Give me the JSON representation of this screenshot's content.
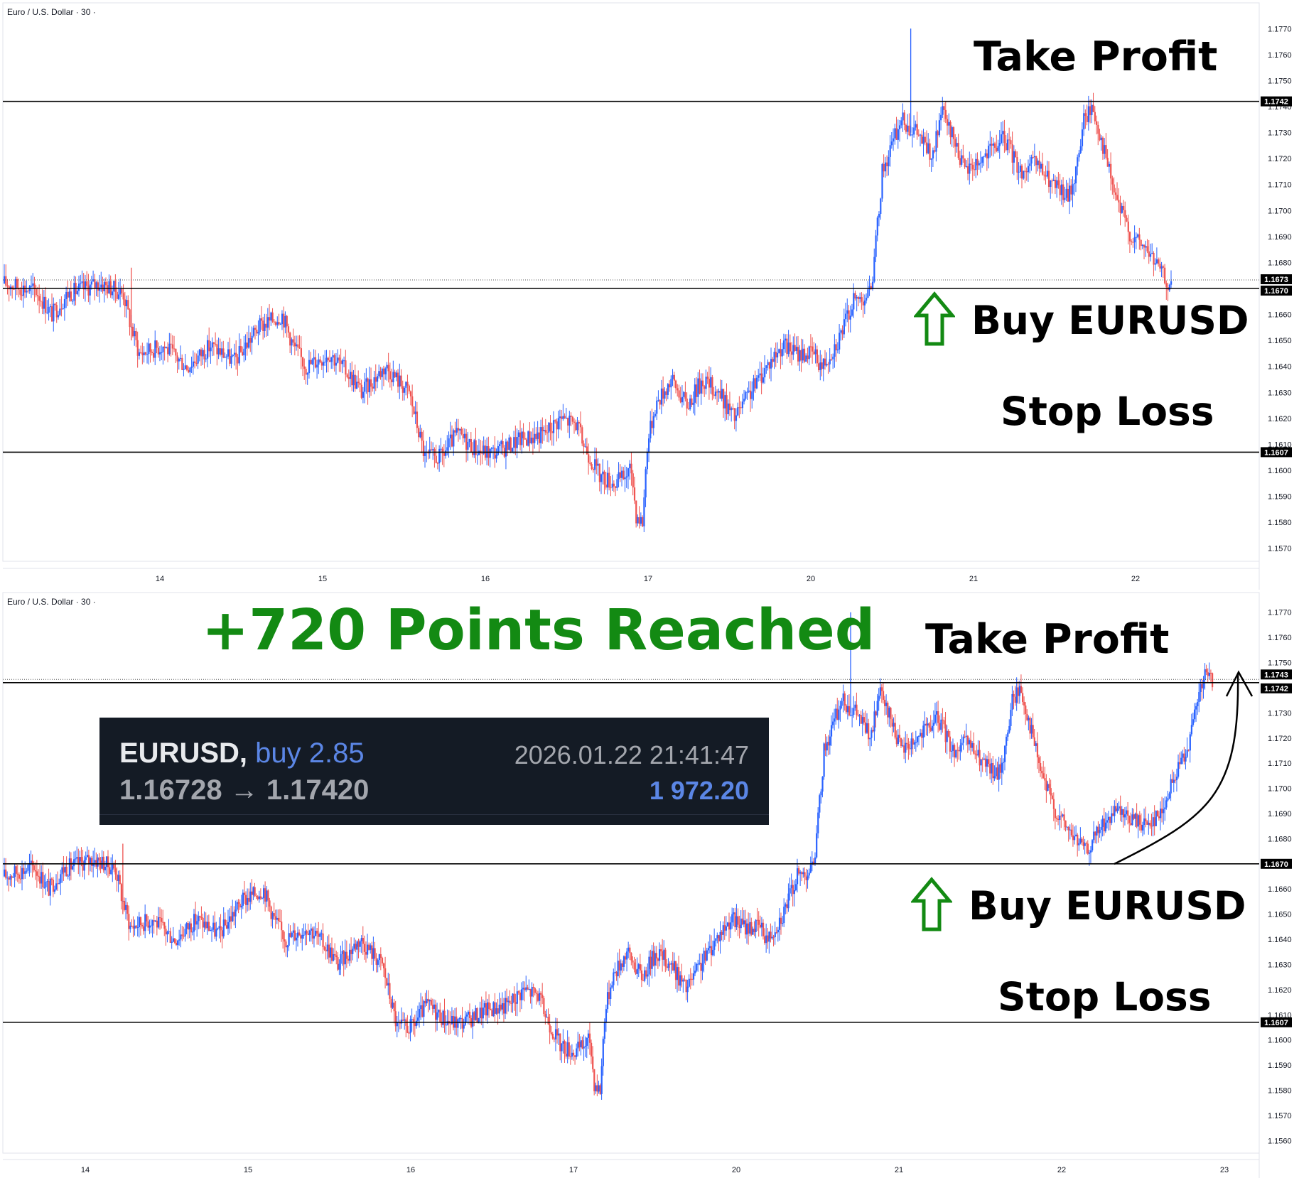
{
  "chart_data": [
    {
      "type": "candlestick",
      "panel": "top",
      "symbol": "Euro / U.S. Dollar · 30 ·",
      "timeframe": "30",
      "ylim": [
        1.1565,
        1.1775
      ],
      "y_ticks": [
        "1.1770",
        "1.1760",
        "1.1750",
        "1.1740",
        "1.1730",
        "1.1720",
        "1.1710",
        "1.1700",
        "1.1690",
        "1.1680",
        "1.1670",
        "1.1660",
        "1.1650",
        "1.1640",
        "1.1630",
        "1.1620",
        "1.1610",
        "1.1600",
        "1.1590",
        "1.1580",
        "1.1570"
      ],
      "x_labels": [
        "14",
        "15",
        "16",
        "17",
        "20",
        "21",
        "22"
      ],
      "price_labels": [
        {
          "value": 1.1742,
          "text": "1.1742",
          "style": "black"
        },
        {
          "value": 1.1673,
          "text": "1.1673",
          "style": "black"
        },
        {
          "value": 1.167,
          "text": "1.1670",
          "style": "black"
        },
        {
          "value": 1.1607,
          "text": "1.1607",
          "style": "black"
        }
      ],
      "horizontal_lines": [
        {
          "value": 1.1742,
          "name": "take-profit"
        },
        {
          "value": 1.167,
          "name": "entry"
        },
        {
          "value": 1.1607,
          "name": "stop-loss"
        }
      ],
      "current_price": 1.1673,
      "annotations": {
        "take_profit": "Take Profit",
        "buy": "Buy EURUSD",
        "stop_loss": "Stop Loss"
      },
      "path_keypoints": [
        [
          0,
          1.1672
        ],
        [
          20,
          1.1669
        ],
        [
          30,
          1.166
        ],
        [
          40,
          1.1668
        ],
        [
          60,
          1.1672
        ],
        [
          75,
          1.1668
        ],
        [
          80,
          1.1655
        ],
        [
          85,
          1.1645
        ],
        [
          100,
          1.1648
        ],
        [
          115,
          1.164
        ],
        [
          130,
          1.1648
        ],
        [
          145,
          1.1642
        ],
        [
          160,
          1.1655
        ],
        [
          175,
          1.166
        ],
        [
          182,
          1.1648
        ],
        [
          190,
          1.164
        ],
        [
          205,
          1.1645
        ],
        [
          220,
          1.1635
        ],
        [
          225,
          1.163
        ],
        [
          240,
          1.164
        ],
        [
          255,
          1.163
        ],
        [
          265,
          1.1605
        ],
        [
          275,
          1.1605
        ],
        [
          285,
          1.1614
        ],
        [
          300,
          1.1607
        ],
        [
          310,
          1.1607
        ],
        [
          325,
          1.1612
        ],
        [
          340,
          1.1614
        ],
        [
          350,
          1.162
        ],
        [
          360,
          1.1618
        ],
        [
          365,
          1.161
        ],
        [
          375,
          1.1598
        ],
        [
          385,
          1.1595
        ],
        [
          395,
          1.16
        ],
        [
          398,
          1.1583
        ],
        [
          402,
          1.158
        ],
        [
          405,
          1.161
        ],
        [
          410,
          1.1625
        ],
        [
          420,
          1.1635
        ],
        [
          430,
          1.1625
        ],
        [
          440,
          1.1635
        ],
        [
          450,
          1.163
        ],
        [
          460,
          1.162
        ],
        [
          470,
          1.163
        ],
        [
          480,
          1.164
        ],
        [
          490,
          1.1648
        ],
        [
          500,
          1.1645
        ],
        [
          510,
          1.1645
        ],
        [
          515,
          1.164
        ],
        [
          525,
          1.165
        ],
        [
          535,
          1.1665
        ],
        [
          545,
          1.1668
        ],
        [
          548,
          1.168
        ],
        [
          553,
          1.1715
        ],
        [
          565,
          1.1735
        ],
        [
          575,
          1.173
        ],
        [
          585,
          1.172
        ],
        [
          590,
          1.1738
        ],
        [
          600,
          1.1725
        ],
        [
          605,
          1.1715
        ],
        [
          620,
          1.1722
        ],
        [
          630,
          1.1728
        ],
        [
          640,
          1.1715
        ],
        [
          650,
          1.1718
        ],
        [
          660,
          1.171
        ],
        [
          670,
          1.1705
        ],
        [
          675,
          1.1715
        ],
        [
          680,
          1.1735
        ],
        [
          685,
          1.174
        ],
        [
          690,
          1.173
        ],
        [
          700,
          1.1705
        ],
        [
          710,
          1.169
        ],
        [
          720,
          1.1685
        ],
        [
          730,
          1.1675
        ],
        [
          735,
          1.167
        ]
      ]
    },
    {
      "type": "candlestick",
      "panel": "bottom",
      "symbol": "Euro / U.S. Dollar · 30 ·",
      "timeframe": "30",
      "ylim": [
        1.1555,
        1.1775
      ],
      "y_ticks": [
        "1.1770",
        "1.1760",
        "1.1750",
        "1.1740",
        "1.1730",
        "1.1720",
        "1.1710",
        "1.1700",
        "1.1690",
        "1.1680",
        "1.1670",
        "1.1660",
        "1.1650",
        "1.1640",
        "1.1630",
        "1.1620",
        "1.1610",
        "1.1600",
        "1.1590",
        "1.1580",
        "1.1570",
        "1.1560"
      ],
      "x_labels": [
        "14",
        "15",
        "16",
        "17",
        "20",
        "21",
        "22",
        "23"
      ],
      "price_labels": [
        {
          "value": 1.1743,
          "text": "1.1743",
          "style": "black"
        },
        {
          "value": 1.1742,
          "text": "1.1742",
          "style": "black"
        },
        {
          "value": 1.167,
          "text": "1.1670",
          "style": "black"
        },
        {
          "value": 1.1607,
          "text": "1.1607",
          "style": "black"
        }
      ],
      "horizontal_lines": [
        {
          "value": 1.1742,
          "name": "take-profit"
        },
        {
          "value": 1.167,
          "name": "entry"
        },
        {
          "value": 1.1607,
          "name": "stop-loss"
        }
      ],
      "current_price": 1.1743,
      "annotations": {
        "take_profit": "Take Profit",
        "buy": "Buy EURUSD",
        "stop_loss": "Stop Loss",
        "headline": "+720 Points Reached"
      },
      "path_keypoints": [
        [
          0,
          1.1665
        ],
        [
          20,
          1.1669
        ],
        [
          30,
          1.166
        ],
        [
          40,
          1.1668
        ],
        [
          60,
          1.1672
        ],
        [
          75,
          1.1668
        ],
        [
          80,
          1.1655
        ],
        [
          85,
          1.1645
        ],
        [
          100,
          1.1648
        ],
        [
          115,
          1.164
        ],
        [
          130,
          1.1648
        ],
        [
          145,
          1.1642
        ],
        [
          160,
          1.1655
        ],
        [
          175,
          1.166
        ],
        [
          182,
          1.1648
        ],
        [
          190,
          1.164
        ],
        [
          205,
          1.1645
        ],
        [
          220,
          1.1635
        ],
        [
          225,
          1.163
        ],
        [
          240,
          1.164
        ],
        [
          255,
          1.163
        ],
        [
          265,
          1.1605
        ],
        [
          275,
          1.1605
        ],
        [
          285,
          1.1614
        ],
        [
          300,
          1.1607
        ],
        [
          310,
          1.1607
        ],
        [
          325,
          1.1612
        ],
        [
          340,
          1.1614
        ],
        [
          350,
          1.162
        ],
        [
          360,
          1.1618
        ],
        [
          365,
          1.161
        ],
        [
          375,
          1.1598
        ],
        [
          385,
          1.1595
        ],
        [
          395,
          1.16
        ],
        [
          398,
          1.1583
        ],
        [
          402,
          1.158
        ],
        [
          405,
          1.161
        ],
        [
          410,
          1.1625
        ],
        [
          420,
          1.1635
        ],
        [
          430,
          1.1625
        ],
        [
          440,
          1.1635
        ],
        [
          450,
          1.163
        ],
        [
          460,
          1.162
        ],
        [
          470,
          1.163
        ],
        [
          480,
          1.164
        ],
        [
          490,
          1.1648
        ],
        [
          500,
          1.1645
        ],
        [
          510,
          1.1645
        ],
        [
          515,
          1.164
        ],
        [
          525,
          1.165
        ],
        [
          535,
          1.1665
        ],
        [
          545,
          1.1668
        ],
        [
          548,
          1.168
        ],
        [
          553,
          1.1715
        ],
        [
          565,
          1.1735
        ],
        [
          575,
          1.173
        ],
        [
          585,
          1.172
        ],
        [
          590,
          1.1738
        ],
        [
          600,
          1.1725
        ],
        [
          605,
          1.1715
        ],
        [
          620,
          1.1722
        ],
        [
          630,
          1.1728
        ],
        [
          640,
          1.1715
        ],
        [
          650,
          1.1718
        ],
        [
          660,
          1.171
        ],
        [
          670,
          1.1705
        ],
        [
          675,
          1.1715
        ],
        [
          680,
          1.1735
        ],
        [
          685,
          1.174
        ],
        [
          690,
          1.173
        ],
        [
          700,
          1.1705
        ],
        [
          710,
          1.169
        ],
        [
          720,
          1.1682
        ],
        [
          730,
          1.1675
        ],
        [
          740,
          1.1685
        ],
        [
          750,
          1.169
        ],
        [
          760,
          1.1688
        ],
        [
          770,
          1.1686
        ],
        [
          780,
          1.169
        ],
        [
          790,
          1.1705
        ],
        [
          800,
          1.172
        ],
        [
          805,
          1.1735
        ],
        [
          810,
          1.1745
        ],
        [
          815,
          1.1743
        ]
      ]
    }
  ],
  "trade": {
    "symbol": "EURUSD,",
    "side": "buy 2.85",
    "prices": "1.16728 → 1.17420",
    "datetime": "2026.01.22 21:41:47",
    "profit": "1 972.20"
  },
  "colors": {
    "up": "#2962ff",
    "down": "#ef5350",
    "line": "#000000",
    "headline": "#138a13",
    "arrow": "#138a13"
  }
}
